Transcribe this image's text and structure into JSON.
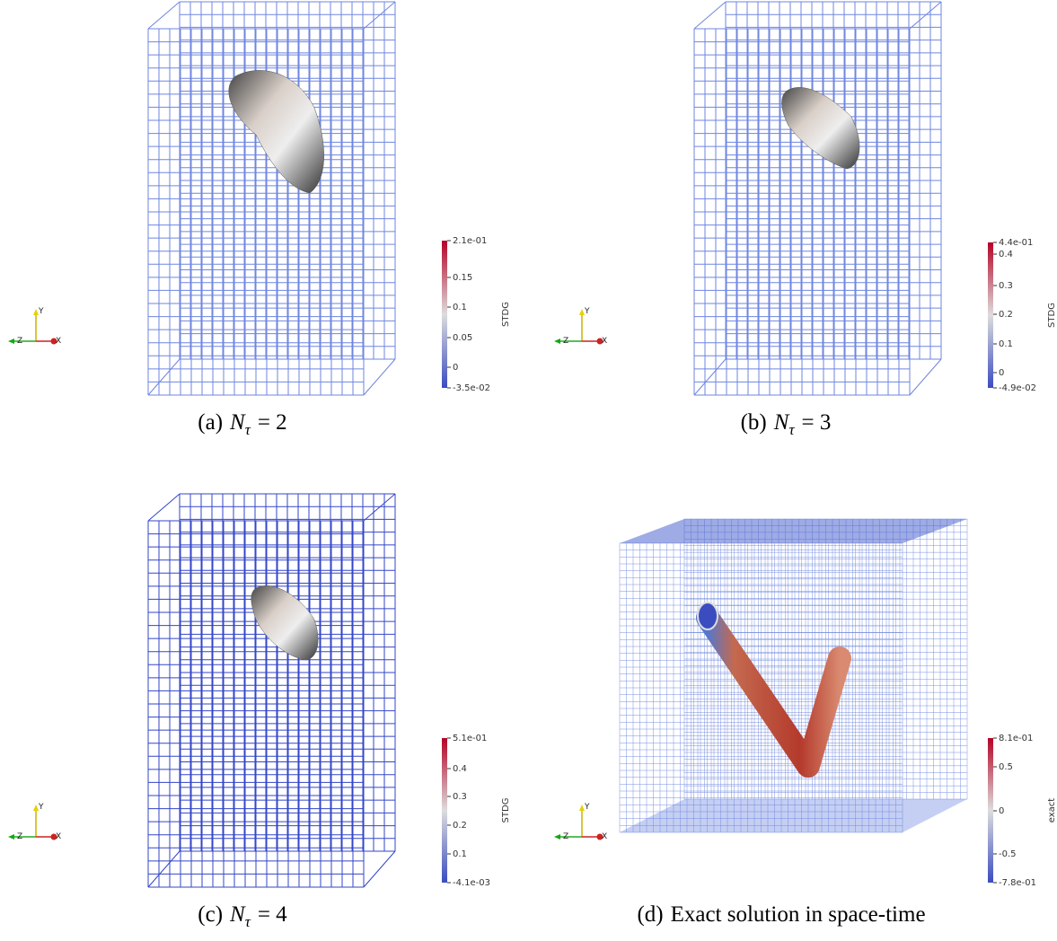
{
  "panels": [
    {
      "caption": {
        "label": "(a)",
        "symbol": "N",
        "subscript": "τ",
        "text": "= 2"
      },
      "colorbar": {
        "title": "STDG",
        "ticks": [
          "2.1e-01",
          "0.15",
          "0.1",
          "0.05",
          "0",
          "-3.5e-02"
        ]
      },
      "axes": {
        "x": "X",
        "y": "Y",
        "z": "Z"
      }
    },
    {
      "caption": {
        "label": "(b)",
        "symbol": "N",
        "subscript": "τ",
        "text": "= 3"
      },
      "colorbar": {
        "title": "STDG",
        "ticks": [
          "4.4e-01",
          "0.4",
          "0.3",
          "0.2",
          "0.1",
          "0",
          "-4.9e-02"
        ]
      },
      "axes": {
        "x": "X",
        "y": "Y",
        "z": "Z"
      }
    },
    {
      "caption": {
        "label": "(c)",
        "symbol": "N",
        "subscript": "τ",
        "text": "= 4"
      },
      "colorbar": {
        "title": "STDG",
        "ticks": [
          "5.1e-01",
          "0.4",
          "0.3",
          "0.2",
          "0.1",
          "-4.1e-03"
        ]
      },
      "axes": {
        "x": "X",
        "y": "Y",
        "z": "Z"
      }
    },
    {
      "caption": {
        "label": "(d)",
        "text": "Exact solution in space-time"
      },
      "colorbar": {
        "title": "exact",
        "ticks": [
          "8.1e-01",
          "0.5",
          "0",
          "-0.5",
          "-7.8e-01"
        ]
      },
      "axes": {
        "x": "X",
        "y": "Y",
        "z": "Z"
      }
    }
  ]
}
